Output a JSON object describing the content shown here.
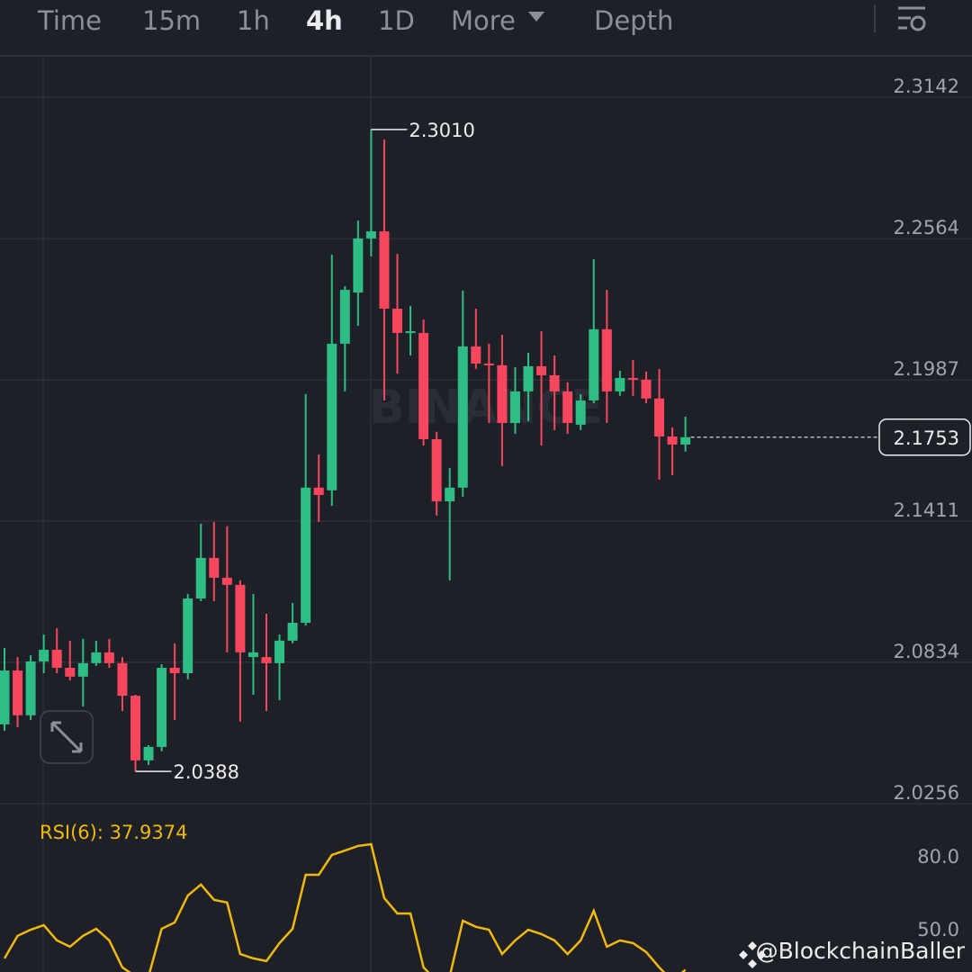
{
  "toolbar": {
    "tabs": [
      "Time",
      "15m",
      "1h",
      "4h",
      "1D",
      "More",
      "Depth"
    ],
    "active": "4h"
  },
  "watermark": "BINANCE",
  "credit": "@BlockchainBaller",
  "chart_data": [
    {
      "type": "candlestick",
      "up_color": "#2ebd85",
      "down_color": "#f6465d",
      "open": [
        2.058,
        2.08,
        2.0617,
        2.0837,
        2.0885,
        2.0811,
        2.0775,
        2.083,
        2.0874,
        2.083,
        2.0697,
        2.0433,
        2.0488,
        2.0811,
        2.0789,
        2.1094,
        2.126,
        2.1179,
        2.115,
        2.0855,
        2.0855,
        2.083,
        2.0922,
        2.0995,
        2.1547,
        2.1536,
        2.2135,
        2.2344,
        2.2565,
        2.2594,
        2.2278,
        2.2179,
        2.2179,
        2.1745,
        2.1491,
        2.1547,
        2.2124,
        2.2054,
        2.2047,
        2.1811,
        2.194,
        2.2043,
        2.2006,
        2.194,
        2.1804,
        2.1903,
        2.2194,
        2.194,
        2.1995,
        2.1988,
        2.1911,
        2.1756,
        2.1723
      ],
      "high": [
        2.0892,
        2.0855,
        2.0863,
        2.0947,
        2.0973,
        2.0922,
        2.0929,
        2.0922,
        2.0929,
        2.0855,
        2.0701,
        2.0495,
        2.0826,
        2.0911,
        2.1113,
        2.14,
        2.1407,
        2.1389,
        2.1168,
        2.1113,
        2.1032,
        2.0947,
        2.1076,
        2.1929,
        2.1683,
        2.2499,
        2.237,
        2.2638,
        2.301,
        2.2969,
        2.2502,
        2.2289,
        2.2234,
        2.1775,
        2.1627,
        2.2352,
        2.2278,
        2.2135,
        2.2172,
        2.2039,
        2.2098,
        2.2186,
        2.2087,
        2.1977,
        2.1929,
        2.248,
        2.2355,
        2.2024,
        2.2069,
        2.2021,
        2.2032,
        2.1793,
        2.1837
      ],
      "low": [
        2.0554,
        2.0569,
        2.0598,
        2.0789,
        2.0789,
        2.076,
        2.0653,
        2.0819,
        2.0811,
        2.0635,
        2.0388,
        2.0414,
        2.047,
        2.0598,
        2.0764,
        2.1083,
        2.1083,
        2.0874,
        2.0591,
        2.0701,
        2.0635,
        2.0679,
        2.0911,
        2.0984,
        2.1407,
        2.1473,
        2.194,
        2.2208,
        2.2491,
        2.1903,
        2.2013,
        2.2087,
        2.1719,
        2.1433,
        2.1168,
        2.151,
        2.2032,
        2.1811,
        2.1635,
        2.1767,
        2.1819,
        2.1719,
        2.1782,
        2.1767,
        2.1782,
        2.1892,
        2.1811,
        2.1922,
        2.1922,
        2.1892,
        2.158,
        2.1598,
        2.1694
      ],
      "close": [
        2.08,
        2.0617,
        2.0837,
        2.0885,
        2.0811,
        2.0775,
        2.083,
        2.0874,
        2.083,
        2.0697,
        2.0433,
        2.0488,
        2.0811,
        2.0789,
        2.1094,
        2.126,
        2.1179,
        2.115,
        2.0874,
        2.0874,
        2.083,
        2.0922,
        2.0995,
        2.1547,
        2.1517,
        2.2135,
        2.2355,
        2.2565,
        2.2594,
        2.2278,
        2.2179,
        2.2186,
        2.1745,
        2.1491,
        2.1547,
        2.2124,
        2.2054,
        2.2047,
        2.1811,
        2.194,
        2.2043,
        2.2006,
        2.194,
        2.1811,
        2.1903,
        2.2194,
        2.194,
        2.1995,
        2.1988,
        2.1911,
        2.1756,
        2.1723,
        2.1753
      ],
      "extreme_labels": {
        "high": "2.3010",
        "low": "2.0388"
      },
      "last_price": 2.1753,
      "ylim": [
        2.0256,
        2.3311
      ],
      "yticks": [
        2.3142,
        2.2564,
        2.1987,
        2.1411,
        2.0834,
        2.0256
      ],
      "grid": true
    },
    {
      "type": "line",
      "title": "RSI(6): 37.9374",
      "color": "#f0b90b",
      "values": [
        42.6,
        51.9,
        54.4,
        56.3,
        50.0,
        47.4,
        51.9,
        54.8,
        50.0,
        38.9,
        35.2,
        35.2,
        54.8,
        57.4,
        68.5,
        73.0,
        66.7,
        65.6,
        44.4,
        42.6,
        41.5,
        48.9,
        54.8,
        77.0,
        77.0,
        85.2,
        87.0,
        88.9,
        89.6,
        67.4,
        61.1,
        61.1,
        38.9,
        33.3,
        35.2,
        58.1,
        55.6,
        54.4,
        44.4,
        50.0,
        54.4,
        52.6,
        50.0,
        44.4,
        50.0,
        62.2,
        47.4,
        50.0,
        48.9,
        45.2,
        38.9,
        33.3,
        37.9
      ],
      "ylim": [
        37,
        103.7
      ],
      "yticks": [
        {
          "value": 80,
          "label": "80.0"
        },
        {
          "value": 50,
          "label": "50.0"
        }
      ]
    }
  ]
}
